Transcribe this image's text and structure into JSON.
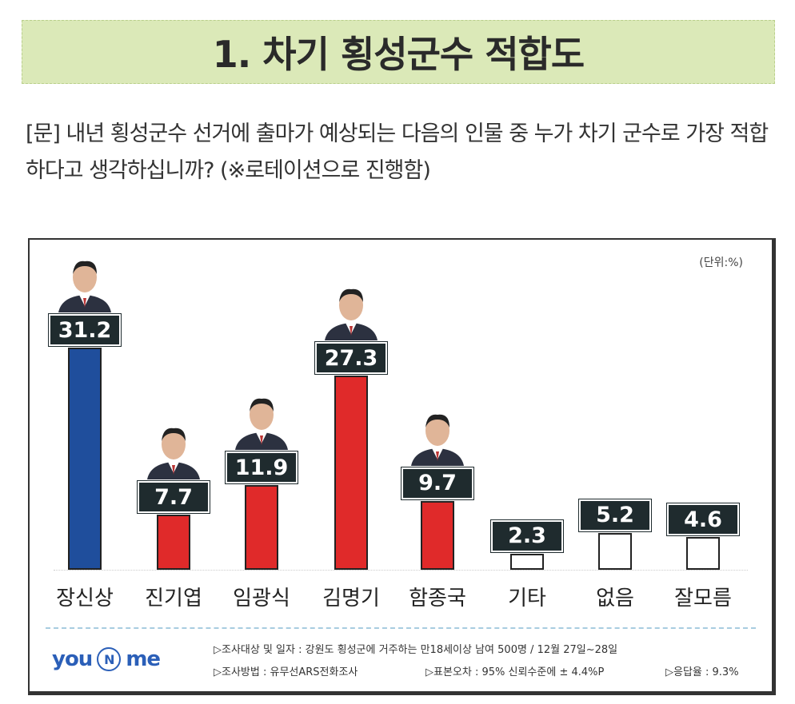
{
  "title": "1. 차기 횡성군수 적합도",
  "question": "[문] 내년 횡성군수 선거에 출마가 예상되는 다음의 인물 중 누가 차기 군수로 가장 적합하다고 생각하십니까? (※로테이션으로 진행함)",
  "chart_data": {
    "type": "bar",
    "unit_label": "(단위:%)",
    "categories": [
      "장신상",
      "진기엽",
      "임광식",
      "김명기",
      "함종국",
      "기타",
      "없음",
      "잘모름"
    ],
    "values": [
      31.2,
      7.7,
      11.9,
      27.3,
      9.7,
      2.3,
      5.2,
      4.6
    ],
    "value_labels": [
      "31.2",
      "7.7",
      "11.9",
      "27.3",
      "9.7",
      "2.3",
      "5.2",
      "4.6"
    ],
    "bar_colors": [
      "#1f4e9c",
      "#e02a2a",
      "#e02a2a",
      "#e02a2a",
      "#e02a2a",
      "#ffffff",
      "#ffffff",
      "#ffffff"
    ],
    "has_photo": [
      true,
      true,
      true,
      true,
      true,
      false,
      false,
      false
    ],
    "ylim": [
      0,
      35
    ]
  },
  "footer": {
    "logo": "you N me",
    "survey_target": "▷조사대상 및 일자 : 강원도 횡성군에 거주하는 만18세이상 남여 500명  /  12월 27일~28일",
    "method": "▷조사방법 : 유무선ARS전화조사",
    "error": "▷표본오차 : 95% 신뢰수준에 ± 4.4%P",
    "response": "▷응답율 : 9.3%"
  }
}
